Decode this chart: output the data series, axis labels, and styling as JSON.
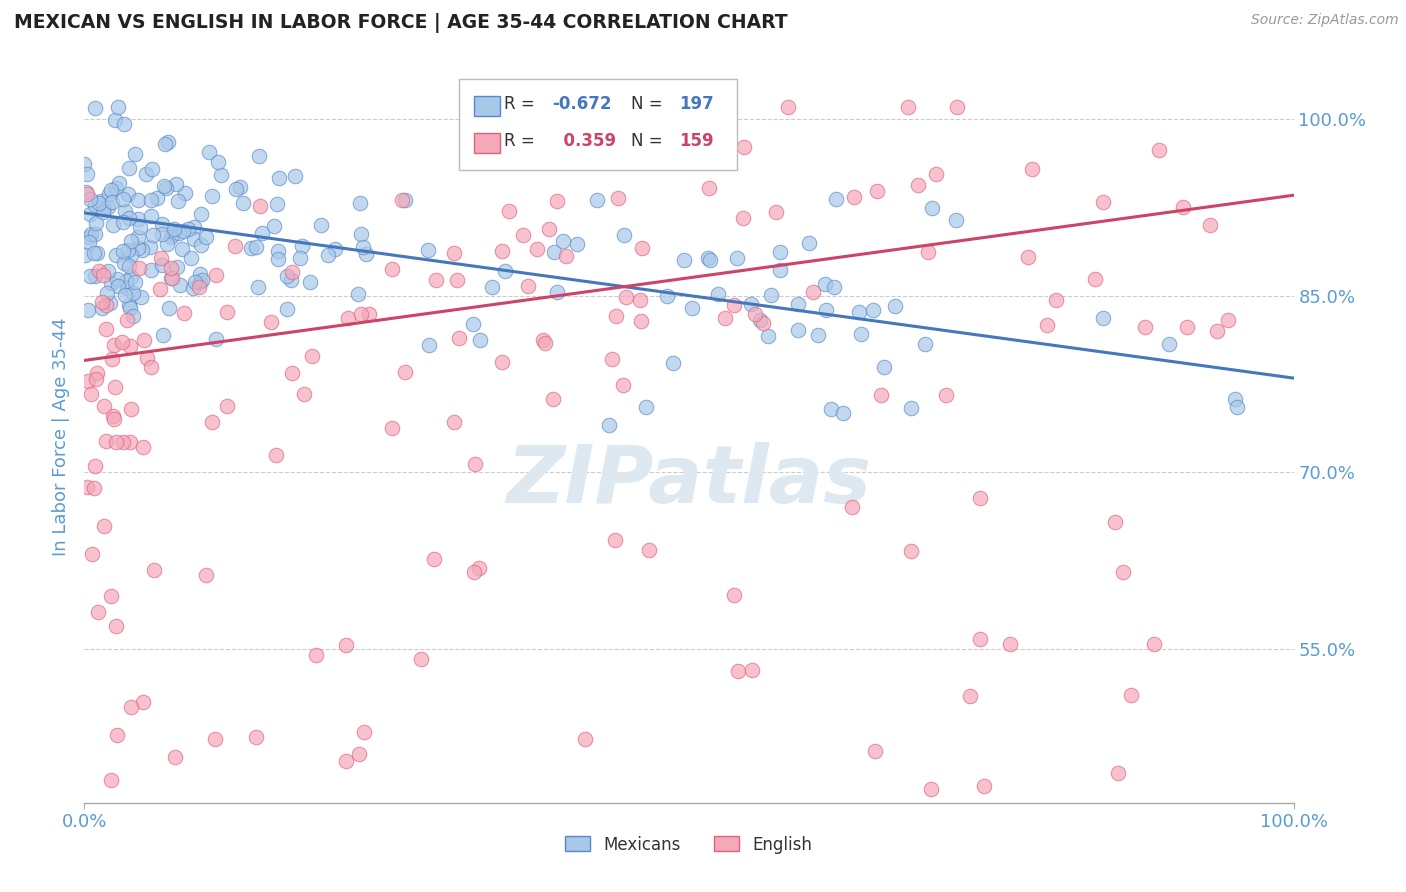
{
  "title": "MEXICAN VS ENGLISH IN LABOR FORCE | AGE 35-44 CORRELATION CHART",
  "source_text": "Source: ZipAtlas.com",
  "ylabel": "In Labor Force | Age 35-44",
  "xlim": [
    0.0,
    1.0
  ],
  "ylim": [
    0.42,
    1.04
  ],
  "ytick_labels": [
    "55.0%",
    "70.0%",
    "85.0%",
    "100.0%"
  ],
  "ytick_values": [
    0.55,
    0.7,
    0.85,
    1.0
  ],
  "xtick_labels": [
    "0.0%",
    "100.0%"
  ],
  "xtick_values": [
    0.0,
    1.0
  ],
  "blue_R": -0.672,
  "blue_N": 197,
  "pink_R": 0.359,
  "pink_N": 159,
  "blue_color": "#a8c8e8",
  "pink_color": "#f4a8b8",
  "blue_edge_color": "#5588cc",
  "pink_edge_color": "#e06080",
  "blue_line_color": "#4477bb",
  "pink_line_color": "#cc4466",
  "title_color": "#222222",
  "axis_label_color": "#5b9bd5",
  "tick_label_color": "#5b9bd5",
  "watermark_color": "#dde8f0",
  "background_color": "#ffffff",
  "grid_color": "#cccccc",
  "blue_line_y0": 0.92,
  "blue_line_y1": 0.78,
  "pink_line_y0": 0.795,
  "pink_line_y1": 0.935
}
